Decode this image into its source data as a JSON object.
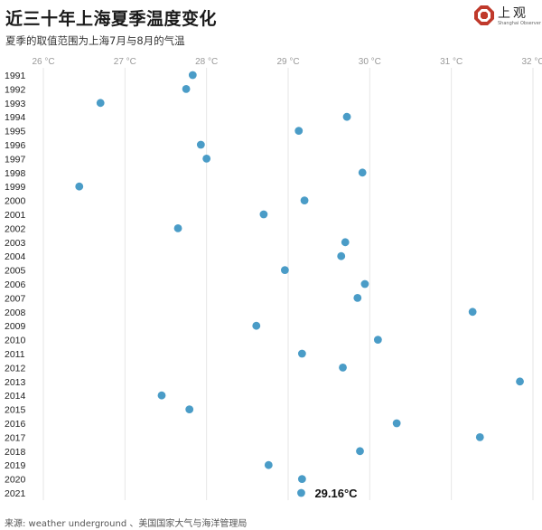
{
  "title": "近三十年上海夏季温度变化",
  "subtitle": "夏季的取值范围为上海7月与8月的气温",
  "source": "来源: weather underground 、美国国家大气与海洋管理局",
  "logo": {
    "text": "上观",
    "sub": "Shanghai Observer",
    "color": "#c0392b"
  },
  "colors": {
    "dot": "#4a9cc7",
    "grid": "#e6e6e6",
    "tick": "#999999"
  },
  "chart_data": {
    "type": "scatter",
    "title": "近三十年上海夏季温度变化",
    "subtitle": "夏季的取值范围为上海7月与8月的气温",
    "x_unit": "°C",
    "xlim": [
      26,
      32
    ],
    "x_ticks": [
      "26 °C",
      "27 °C",
      "28 °C",
      "29 °C",
      "30 °C",
      "31 °C",
      "32 °C"
    ],
    "grid": true,
    "orientation": "horizontal dot plot, years on vertical axis",
    "annotation": {
      "year": "2021",
      "text": "29.16°C"
    },
    "points": [
      {
        "year": "1991",
        "value": 27.83
      },
      {
        "year": "1992",
        "value": 27.75
      },
      {
        "year": "1993",
        "value": 26.7
      },
      {
        "year": "1994",
        "value": 29.72
      },
      {
        "year": "1995",
        "value": 29.13
      },
      {
        "year": "1996",
        "value": 27.93
      },
      {
        "year": "1997",
        "value": 28.0
      },
      {
        "year": "1998",
        "value": 29.91
      },
      {
        "year": "1999",
        "value": 26.44
      },
      {
        "year": "2000",
        "value": 29.2
      },
      {
        "year": "2001",
        "value": 28.7
      },
      {
        "year": "2002",
        "value": 27.65
      },
      {
        "year": "2003",
        "value": 29.7
      },
      {
        "year": "2004",
        "value": 29.65
      },
      {
        "year": "2005",
        "value": 28.96
      },
      {
        "year": "2006",
        "value": 29.94
      },
      {
        "year": "2007",
        "value": 29.85
      },
      {
        "year": "2008",
        "value": 31.26
      },
      {
        "year": "2009",
        "value": 28.61
      },
      {
        "year": "2010",
        "value": 30.1
      },
      {
        "year": "2011",
        "value": 29.17
      },
      {
        "year": "2012",
        "value": 29.67
      },
      {
        "year": "2013",
        "value": 31.84
      },
      {
        "year": "2014",
        "value": 27.45
      },
      {
        "year": "2015",
        "value": 27.79
      },
      {
        "year": "2016",
        "value": 30.33
      },
      {
        "year": "2017",
        "value": 31.35
      },
      {
        "year": "2018",
        "value": 29.88
      },
      {
        "year": "2019",
        "value": 28.76
      },
      {
        "year": "2020",
        "value": 29.17
      },
      {
        "year": "2021",
        "value": 29.16
      }
    ]
  }
}
